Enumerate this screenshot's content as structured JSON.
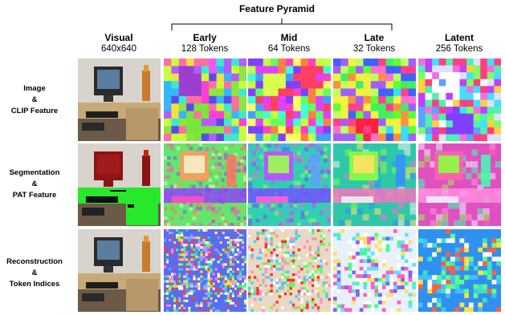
{
  "figure": {
    "pyramid_title": "Feature Pyramid",
    "columns": [
      {
        "title": "Visual",
        "subtitle": "640x640"
      },
      {
        "title": "Early",
        "subtitle": "128 Tokens"
      },
      {
        "title": "Mid",
        "subtitle": "64 Tokens"
      },
      {
        "title": "Late",
        "subtitle": "32 Tokens"
      },
      {
        "title": "Latent",
        "subtitle": "256 Tokens"
      }
    ],
    "rows": [
      {
        "line1": "Image",
        "line2": "&",
        "line3": "CLIP Feature"
      },
      {
        "line1": "Segmentation",
        "line2": "&",
        "line3": "PAT Feature"
      },
      {
        "line1": "Reconstruction",
        "line2": "&",
        "line3": "Token Indices"
      }
    ]
  }
}
